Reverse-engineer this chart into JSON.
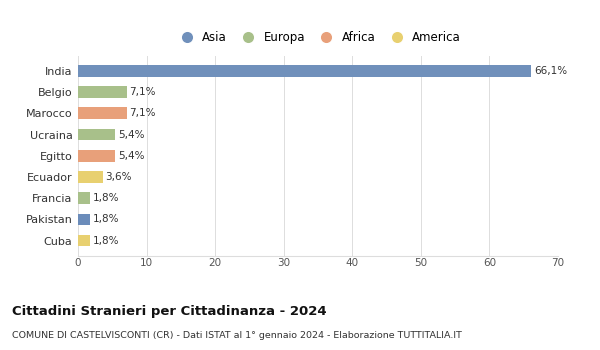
{
  "countries": [
    "India",
    "Belgio",
    "Marocco",
    "Ucraina",
    "Egitto",
    "Ecuador",
    "Francia",
    "Pakistan",
    "Cuba"
  ],
  "values": [
    66.1,
    7.1,
    7.1,
    5.4,
    5.4,
    3.6,
    1.8,
    1.8,
    1.8
  ],
  "labels": [
    "66,1%",
    "7,1%",
    "7,1%",
    "5,4%",
    "5,4%",
    "3,6%",
    "1,8%",
    "1,8%",
    "1,8%"
  ],
  "colors": [
    "#7090bb",
    "#a8c08a",
    "#e8a07a",
    "#a8c08a",
    "#e8a07a",
    "#e8d070",
    "#a8c08a",
    "#6b8cba",
    "#e8d070"
  ],
  "legend_labels": [
    "Asia",
    "Europa",
    "Africa",
    "America"
  ],
  "legend_colors": [
    "#7090bb",
    "#a8c08a",
    "#e8a07a",
    "#e8d070"
  ],
  "title": "Cittadini Stranieri per Cittadinanza - 2024",
  "subtitle": "COMUNE DI CASTELVISCONTI (CR) - Dati ISTAT al 1° gennaio 2024 - Elaborazione TUTTITALIA.IT",
  "xlim": [
    0,
    70
  ],
  "xticks": [
    0,
    10,
    20,
    30,
    40,
    50,
    60,
    70
  ],
  "background_color": "#ffffff",
  "grid_color": "#dddddd"
}
